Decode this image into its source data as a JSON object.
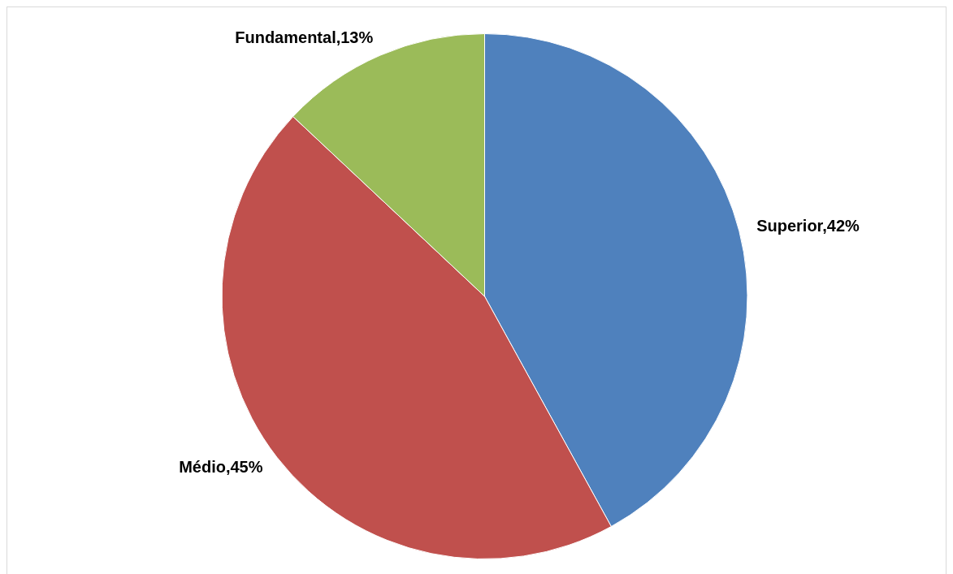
{
  "chart_data": {
    "type": "pie",
    "categories": [
      "Superior",
      "Médio",
      "Fundamental"
    ],
    "values": [
      42,
      45,
      13
    ],
    "value_labels": [
      "42%",
      "45%",
      "13%"
    ],
    "colors": [
      "#4f81bd",
      "#c0504d",
      "#9bbb59"
    ]
  }
}
